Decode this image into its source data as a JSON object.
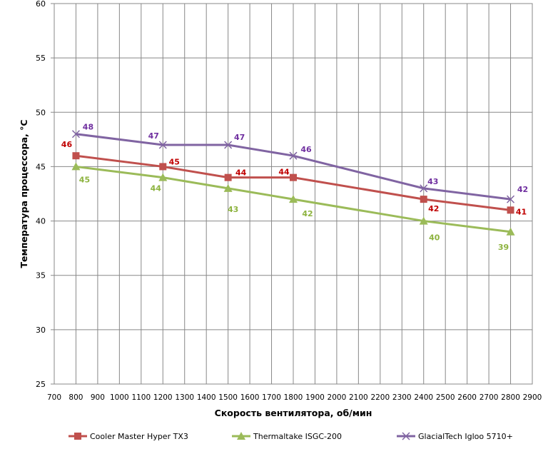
{
  "chart_data": {
    "type": "line",
    "title": "",
    "xlabel": "Скорость вентилятора, об/мин",
    "ylabel": "Температура процессора, °C",
    "xlim": [
      700,
      2900
    ],
    "xstep": 100,
    "ylim": [
      25,
      60
    ],
    "ystep": 5,
    "grid": true,
    "legend": "bottom",
    "x": [
      800,
      1200,
      1500,
      1800,
      2400,
      2800
    ],
    "series": [
      {
        "name": "Cooler Master Hyper TX3",
        "values": [
          46,
          45,
          44,
          44,
          42,
          41
        ],
        "color": "#C0504D",
        "label_color": "#C00000",
        "marker": "square"
      },
      {
        "name": "Thermaltake ISGC-200",
        "values": [
          45,
          44,
          43,
          42,
          40,
          39
        ],
        "color": "#9BBB59",
        "label_color": "#8DB33F",
        "marker": "triangle"
      },
      {
        "name": "GlacialTech Igloo 5710+",
        "values": [
          48,
          47,
          47,
          46,
          43,
          42
        ],
        "color": "#8064A2",
        "label_color": "#7030A0",
        "marker": "x"
      }
    ]
  }
}
